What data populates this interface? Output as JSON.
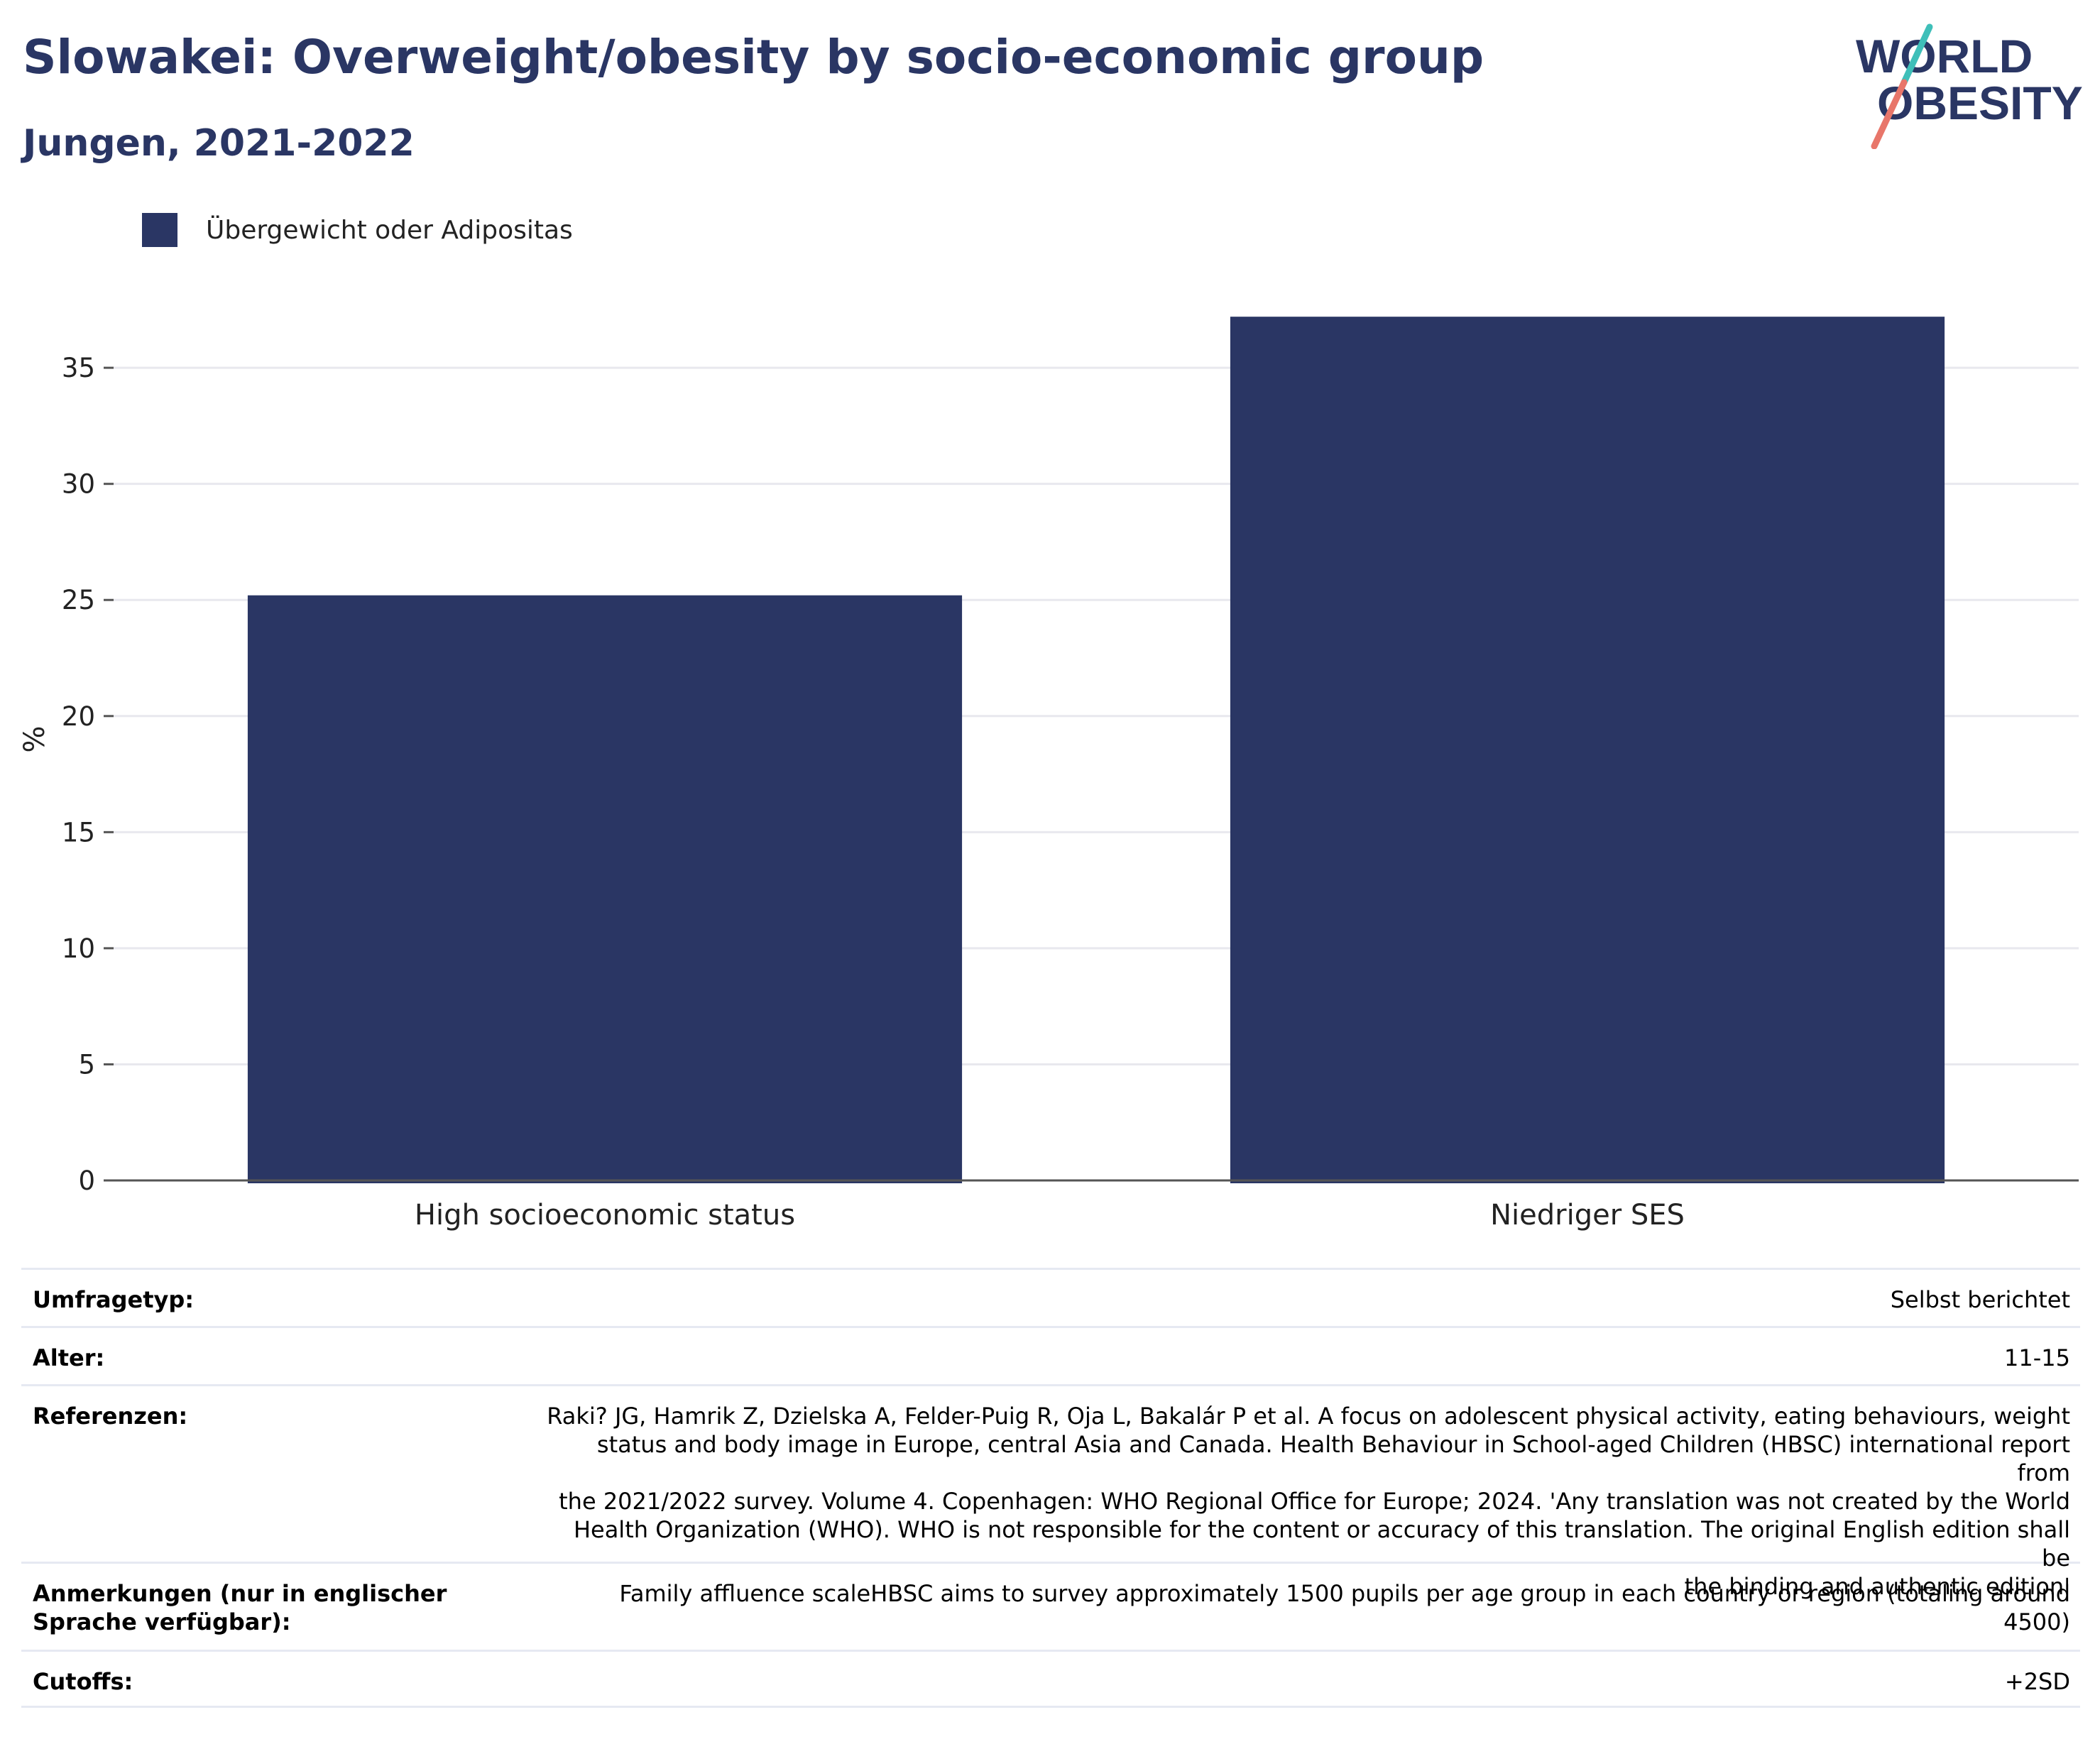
{
  "header": {
    "title": "Slowakei: Overweight/obesity by socio-economic group",
    "subtitle": "Jungen, 2021-2022",
    "logo_text": [
      "WORLD",
      "OBESITY"
    ]
  },
  "colors": {
    "bar": "#2a3664",
    "title": "#2a3664",
    "logo_teal": "#3fbfb9",
    "logo_coral": "#e8766a",
    "grid": "#e8e8ee"
  },
  "chart_data": {
    "type": "bar",
    "title": "Slowakei: Overweight/obesity by socio-economic group",
    "subtitle": "Jungen, 2021-2022",
    "categories": [
      "High socioeconomic status",
      "Niedriger SES"
    ],
    "series": [
      {
        "name": "Übergewicht oder Adipositas",
        "values": [
          25.2,
          37.2
        ]
      }
    ],
    "xlabel": "",
    "ylabel": "%",
    "ylim": [
      0,
      38
    ],
    "yticks": [
      0,
      5,
      10,
      15,
      20,
      25,
      30,
      35
    ],
    "grid": true,
    "legend": "top-left"
  },
  "info_table": [
    {
      "key": "Umfragetyp:",
      "value": "Selbst berichtet"
    },
    {
      "key": "Alter:",
      "value": "11-15"
    },
    {
      "key": "Referenzen:",
      "value_lines": [
        "Raki? JG, Hamrik Z, Dzielska A, Felder-Puig R, Oja L, Bakalár P et al. A focus on adolescent physical activity, eating behaviours, weight",
        "status and body image in Europe, central Asia and Canada. Health Behaviour in School-aged Children (HBSC) international report from",
        "the 2021/2022 survey. Volume 4. Copenhagen: WHO Regional Office for Europe; 2024. 'Any translation was not created by the World",
        "Health Organization (WHO). WHO is not responsible for the content or accuracy of this translation. The original English edition shall be",
        "the binding and authentic edition'"
      ]
    },
    {
      "key": "Anmerkungen (nur in englischer Sprache verfügbar):",
      "value": "Family affluence scaleHBSC aims to survey approximately 1500 pupils per age group in each country or region (totaling around 4500)"
    },
    {
      "key": "Cutoffs:",
      "value": "+2SD"
    }
  ]
}
